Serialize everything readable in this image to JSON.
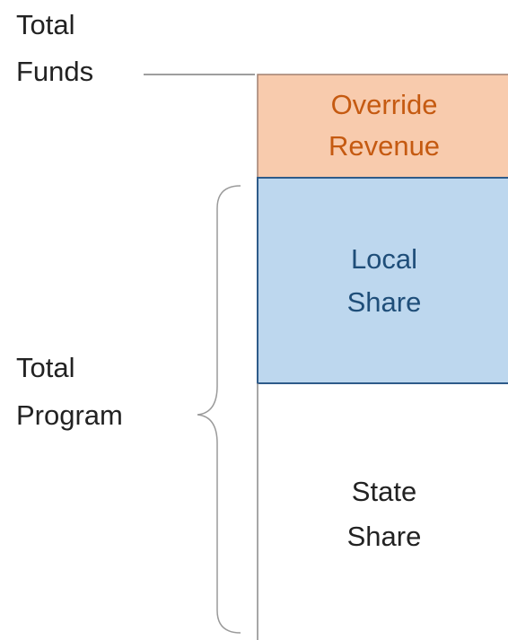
{
  "labels": {
    "total_funds": [
      "Total",
      "Funds"
    ],
    "total_program": [
      "Total",
      "Program"
    ]
  },
  "blocks": [
    {
      "label": [
        "Override",
        "Revenue"
      ]
    },
    {
      "label": [
        "Local",
        "Share"
      ]
    },
    {
      "label": [
        "State",
        "Share"
      ]
    }
  ]
}
